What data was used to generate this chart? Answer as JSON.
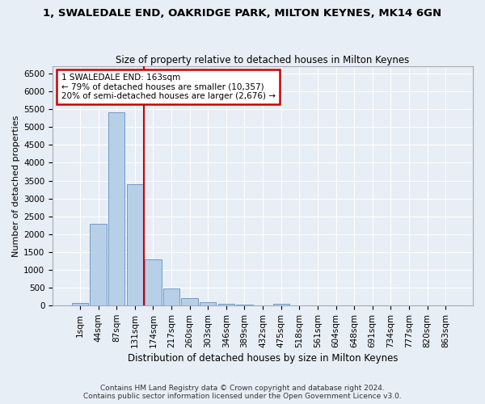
{
  "title": "1, SWALEDALE END, OAKRIDGE PARK, MILTON KEYNES, MK14 6GN",
  "subtitle": "Size of property relative to detached houses in Milton Keynes",
  "xlabel": "Distribution of detached houses by size in Milton Keynes",
  "ylabel": "Number of detached properties",
  "footer_line1": "Contains HM Land Registry data © Crown copyright and database right 2024.",
  "footer_line2": "Contains public sector information licensed under the Open Government Licence v3.0.",
  "bar_labels": [
    "1sqm",
    "44sqm",
    "87sqm",
    "131sqm",
    "174sqm",
    "217sqm",
    "260sqm",
    "303sqm",
    "346sqm",
    "389sqm",
    "432sqm",
    "475sqm",
    "518sqm",
    "561sqm",
    "604sqm",
    "648sqm",
    "691sqm",
    "734sqm",
    "777sqm",
    "820sqm",
    "863sqm"
  ],
  "bar_values": [
    75,
    2280,
    5420,
    3390,
    1300,
    475,
    200,
    95,
    60,
    20,
    5,
    55,
    0,
    0,
    0,
    0,
    0,
    0,
    0,
    0,
    0
  ],
  "bar_color": "#b8cfe8",
  "bar_edge_color": "#6090c0",
  "vline_x": 3.5,
  "annotation_line1": "1 SWALEDALE END: 163sqm",
  "annotation_line2": "← 79% of detached houses are smaller (10,357)",
  "annotation_line3": "20% of semi-detached houses are larger (2,676) →",
  "vline_color": "#cc0000",
  "ylim": [
    0,
    6700
  ],
  "yticks": [
    0,
    500,
    1000,
    1500,
    2000,
    2500,
    3000,
    3500,
    4000,
    4500,
    5000,
    5500,
    6000,
    6500
  ],
  "bg_color": "#e8eef5",
  "grid_color": "#ffffff",
  "annotation_box_color": "#ffffff",
  "annotation_box_edge": "#cc0000",
  "title_fontsize": 9.5,
  "subtitle_fontsize": 8.5,
  "ylabel_fontsize": 8,
  "xlabel_fontsize": 8.5,
  "tick_fontsize": 7.5,
  "footer_fontsize": 6.5
}
